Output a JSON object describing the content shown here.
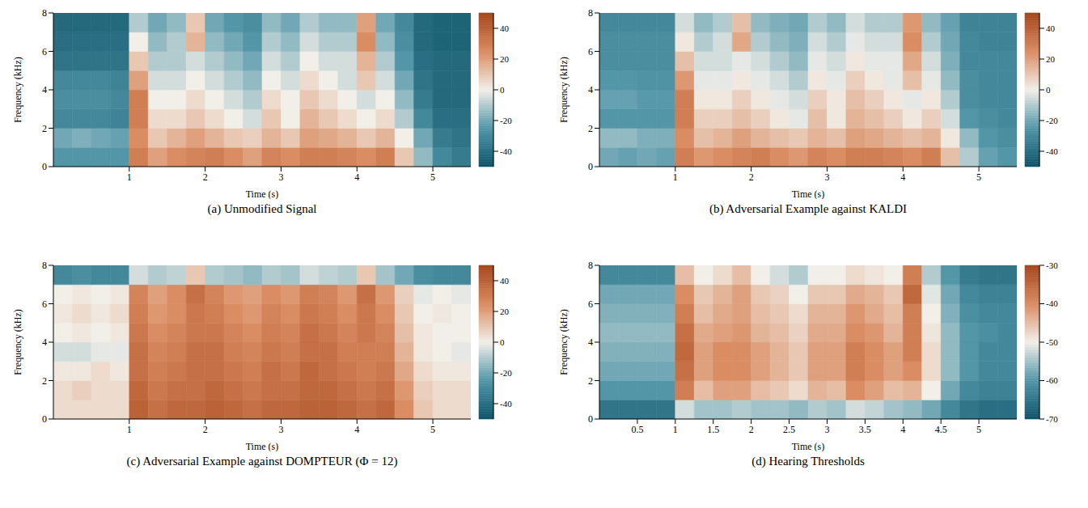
{
  "chart_data": [
    {
      "type": "heatmap",
      "title": "(a) Unmodified Signal",
      "xlabel": "Time (s)",
      "ylabel": "Frequency (kHz)",
      "xlim": [
        0,
        5.5
      ],
      "xticks": [
        1,
        2,
        3,
        4,
        5
      ],
      "ylim": [
        0,
        8
      ],
      "yticks": [
        0,
        2,
        4,
        6,
        8
      ],
      "x_bins": [
        0,
        0.25,
        0.5,
        0.75,
        1,
        1.25,
        1.5,
        1.75,
        2,
        2.25,
        2.5,
        2.75,
        3,
        3.25,
        3.5,
        3.75,
        4,
        4.25,
        4.5,
        4.75,
        5,
        5.25,
        5.5
      ],
      "y_bins": [
        0,
        1,
        2,
        3,
        4,
        5,
        6,
        7,
        8
      ],
      "cells": [
        [
          -25,
          -25,
          -25,
          -25,
          30,
          20,
          25,
          28,
          30,
          25,
          20,
          28,
          25,
          30,
          30,
          28,
          25,
          30,
          10,
          -15,
          -30,
          -35
        ],
        [
          -20,
          -18,
          -20,
          -22,
          25,
          10,
          15,
          20,
          15,
          10,
          8,
          15,
          10,
          20,
          18,
          15,
          10,
          15,
          0,
          -20,
          -35,
          -38
        ],
        [
          -30,
          -30,
          -30,
          -32,
          30,
          5,
          5,
          10,
          5,
          0,
          -5,
          10,
          0,
          15,
          10,
          5,
          0,
          5,
          -10,
          -30,
          -40,
          -40
        ],
        [
          -28,
          -28,
          -28,
          -30,
          30,
          0,
          0,
          5,
          0,
          -5,
          -10,
          5,
          0,
          10,
          5,
          0,
          -5,
          0,
          -15,
          -35,
          -42,
          -42
        ],
        [
          -30,
          -30,
          -30,
          -32,
          20,
          -5,
          -5,
          0,
          -5,
          -10,
          -15,
          0,
          -5,
          5,
          0,
          -5,
          10,
          -5,
          -20,
          -38,
          -42,
          -42
        ],
        [
          -38,
          -38,
          -38,
          -38,
          10,
          -10,
          -10,
          -5,
          -10,
          -15,
          -20,
          -5,
          -10,
          0,
          -5,
          -5,
          15,
          -10,
          -25,
          -40,
          -42,
          -42
        ],
        [
          -40,
          -40,
          -40,
          -40,
          0,
          -15,
          -10,
          15,
          -15,
          -20,
          -25,
          -10,
          -15,
          -5,
          -10,
          -10,
          25,
          -15,
          -28,
          -42,
          -44,
          -44
        ],
        [
          -42,
          -42,
          -42,
          -42,
          -10,
          -20,
          -15,
          10,
          -20,
          -25,
          -28,
          -15,
          -20,
          -10,
          -15,
          -15,
          20,
          -20,
          -30,
          -42,
          -44,
          -44
        ]
      ],
      "colorbar": {
        "range": [
          -50,
          50
        ],
        "ticks": [
          -40,
          -20,
          0,
          20,
          40
        ]
      }
    },
    {
      "type": "heatmap",
      "title": "(b) Adversarial Example against KALDI",
      "xlabel": "Time (s)",
      "ylabel": "Frequency (kHz)",
      "xlim": [
        0,
        5.5
      ],
      "xticks": [
        1,
        2,
        3,
        4,
        5
      ],
      "ylim": [
        0,
        8
      ],
      "yticks": [
        0,
        2,
        4,
        6,
        8
      ],
      "x_bins": [
        0,
        0.25,
        0.5,
        0.75,
        1,
        1.25,
        1.5,
        1.75,
        2,
        2.25,
        2.5,
        2.75,
        3,
        3.25,
        3.5,
        3.75,
        4,
        4.25,
        4.5,
        4.75,
        5,
        5.25,
        5.5
      ],
      "y_bins": [
        0,
        1,
        2,
        3,
        4,
        5,
        6,
        7,
        8
      ],
      "cells": [
        [
          -20,
          -22,
          -20,
          -22,
          30,
          22,
          25,
          28,
          30,
          25,
          22,
          28,
          25,
          30,
          30,
          28,
          25,
          30,
          12,
          -10,
          -22,
          -25
        ],
        [
          -15,
          -15,
          -18,
          -18,
          25,
          12,
          15,
          20,
          15,
          12,
          10,
          15,
          12,
          20,
          18,
          15,
          12,
          15,
          2,
          -15,
          -25,
          -28
        ],
        [
          -25,
          -25,
          -25,
          -25,
          30,
          8,
          8,
          12,
          8,
          2,
          -2,
          12,
          2,
          15,
          12,
          8,
          2,
          8,
          -5,
          -25,
          -28,
          -30
        ],
        [
          -22,
          -22,
          -24,
          -24,
          30,
          2,
          2,
          8,
          2,
          -2,
          -5,
          8,
          2,
          12,
          8,
          2,
          -2,
          2,
          -10,
          -28,
          -30,
          -30
        ],
        [
          -25,
          -25,
          -26,
          -26,
          22,
          -2,
          -2,
          2,
          -2,
          -5,
          -10,
          2,
          -2,
          8,
          2,
          -2,
          12,
          -2,
          -15,
          -28,
          -30,
          -30
        ],
        [
          -28,
          -28,
          -28,
          -28,
          12,
          -5,
          -5,
          -2,
          -5,
          -10,
          -15,
          -2,
          -5,
          2,
          -2,
          -2,
          18,
          -5,
          -18,
          -30,
          -30,
          -30
        ],
        [
          -28,
          -28,
          -28,
          -28,
          2,
          -10,
          -5,
          18,
          -10,
          -15,
          -18,
          -5,
          -10,
          -2,
          -5,
          -5,
          25,
          -10,
          -20,
          -30,
          -32,
          -32
        ],
        [
          -30,
          -30,
          -30,
          -30,
          -5,
          -15,
          -10,
          12,
          -15,
          -18,
          -20,
          -10,
          -15,
          -5,
          -10,
          -10,
          22,
          -15,
          -22,
          -32,
          -32,
          -32
        ]
      ],
      "colorbar": {
        "range": [
          -50,
          50
        ],
        "ticks": [
          -40,
          -20,
          0,
          20,
          40
        ]
      }
    },
    {
      "type": "heatmap",
      "title": "(c) Adversarial Example against DOMPTEUR (Φ = 12)",
      "xlabel": "Time (s)",
      "ylabel": "Frequency (kHz)",
      "xlim": [
        0,
        5.5
      ],
      "xticks": [
        1,
        2,
        3,
        4,
        5
      ],
      "ylim": [
        0,
        8
      ],
      "yticks": [
        0,
        2,
        4,
        6,
        8
      ],
      "x_bins": [
        0,
        0.25,
        0.5,
        0.75,
        1,
        1.25,
        1.5,
        1.75,
        2,
        2.25,
        2.5,
        2.75,
        3,
        3.25,
        3.5,
        3.75,
        4,
        4.25,
        4.5,
        4.75,
        5,
        5.25,
        5.5
      ],
      "y_bins": [
        0,
        1,
        2,
        3,
        4,
        5,
        6,
        7,
        8
      ],
      "cells": [
        [
          5,
          5,
          5,
          5,
          40,
          35,
          38,
          38,
          40,
          38,
          35,
          38,
          38,
          40,
          40,
          38,
          35,
          38,
          25,
          10,
          5,
          5
        ],
        [
          5,
          8,
          5,
          5,
          38,
          32,
          35,
          35,
          38,
          35,
          32,
          35,
          35,
          38,
          38,
          35,
          32,
          35,
          22,
          8,
          5,
          5
        ],
        [
          2,
          2,
          5,
          2,
          35,
          30,
          32,
          35,
          35,
          32,
          30,
          35,
          32,
          38,
          35,
          32,
          30,
          32,
          18,
          5,
          2,
          2
        ],
        [
          -5,
          -5,
          -2,
          -2,
          35,
          28,
          30,
          35,
          35,
          30,
          28,
          32,
          30,
          35,
          35,
          30,
          30,
          30,
          15,
          2,
          0,
          -2
        ],
        [
          0,
          2,
          0,
          2,
          32,
          25,
          28,
          32,
          32,
          28,
          25,
          30,
          28,
          35,
          32,
          28,
          32,
          28,
          12,
          2,
          0,
          0
        ],
        [
          2,
          5,
          2,
          5,
          30,
          22,
          25,
          32,
          30,
          25,
          22,
          28,
          25,
          32,
          30,
          25,
          32,
          25,
          10,
          0,
          2,
          0
        ],
        [
          0,
          2,
          0,
          2,
          28,
          20,
          25,
          35,
          28,
          22,
          20,
          25,
          22,
          30,
          28,
          22,
          35,
          22,
          8,
          -2,
          0,
          -2
        ],
        [
          -30,
          -28,
          -30,
          -30,
          -5,
          -10,
          -8,
          10,
          -10,
          -12,
          -15,
          -10,
          -12,
          -5,
          -8,
          -10,
          10,
          -12,
          -20,
          -28,
          -30,
          -30
        ]
      ],
      "colorbar": {
        "range": [
          -50,
          50
        ],
        "ticks": [
          -40,
          -20,
          0,
          20,
          40
        ]
      }
    },
    {
      "type": "heatmap",
      "title": "(d) Hearing Thresholds",
      "xlabel": "Time (s)",
      "ylabel": "Frequency (kHz)",
      "xlim": [
        0,
        5.5
      ],
      "xticks": [
        0.5,
        1,
        1.5,
        2,
        2.5,
        3,
        3.5,
        4,
        4.5,
        5
      ],
      "ylim": [
        0,
        8
      ],
      "yticks": [
        0,
        2,
        4,
        6,
        8
      ],
      "x_bins": [
        0,
        0.25,
        0.5,
        0.75,
        1,
        1.25,
        1.5,
        1.75,
        2,
        2.25,
        2.5,
        2.75,
        3,
        3.25,
        3.5,
        3.75,
        4,
        4.25,
        4.5,
        4.75,
        5,
        5.25,
        5.5
      ],
      "y_bins": [
        0,
        1,
        2,
        3,
        4,
        5,
        6,
        7,
        8
      ],
      "cells": [
        [
          -65,
          -65,
          -65,
          -65,
          -52,
          -55,
          -55,
          -54,
          -55,
          -55,
          -56,
          -54,
          -55,
          -52,
          -53,
          -55,
          -56,
          -58,
          -62,
          -65,
          -66,
          -66
        ],
        [
          -60,
          -60,
          -60,
          -60,
          -38,
          -45,
          -42,
          -42,
          -45,
          -46,
          -48,
          -44,
          -45,
          -40,
          -42,
          -45,
          -44,
          -50,
          -58,
          -62,
          -63,
          -63
        ],
        [
          -58,
          -58,
          -58,
          -58,
          -36,
          -42,
          -40,
          -40,
          -42,
          -44,
          -46,
          -42,
          -42,
          -38,
          -40,
          -42,
          -40,
          -48,
          -56,
          -60,
          -62,
          -62
        ],
        [
          -57,
          -57,
          -57,
          -57,
          -35,
          -42,
          -40,
          -40,
          -42,
          -44,
          -46,
          -42,
          -42,
          -38,
          -40,
          -42,
          -38,
          -48,
          -56,
          -60,
          -62,
          -62
        ],
        [
          -56,
          -56,
          -56,
          -56,
          -36,
          -43,
          -42,
          -41,
          -44,
          -45,
          -47,
          -43,
          -43,
          -40,
          -41,
          -44,
          -38,
          -49,
          -56,
          -60,
          -61,
          -62
        ],
        [
          -57,
          -57,
          -57,
          -57,
          -38,
          -45,
          -43,
          -42,
          -45,
          -46,
          -48,
          -44,
          -44,
          -41,
          -43,
          -45,
          -38,
          -50,
          -57,
          -61,
          -62,
          -62
        ],
        [
          -58,
          -58,
          -58,
          -58,
          -40,
          -46,
          -44,
          -42,
          -46,
          -47,
          -50,
          -46,
          -46,
          -43,
          -44,
          -46,
          -35,
          -51,
          -58,
          -62,
          -63,
          -63
        ],
        [
          -62,
          -62,
          -62,
          -62,
          -45,
          -50,
          -48,
          -45,
          -50,
          -52,
          -54,
          -50,
          -50,
          -48,
          -49,
          -50,
          -38,
          -54,
          -60,
          -64,
          -65,
          -65
        ]
      ],
      "colorbar": {
        "range": [
          -70,
          -30
        ],
        "ticks": [
          -70,
          -60,
          -50,
          -40,
          -30
        ]
      }
    }
  ]
}
